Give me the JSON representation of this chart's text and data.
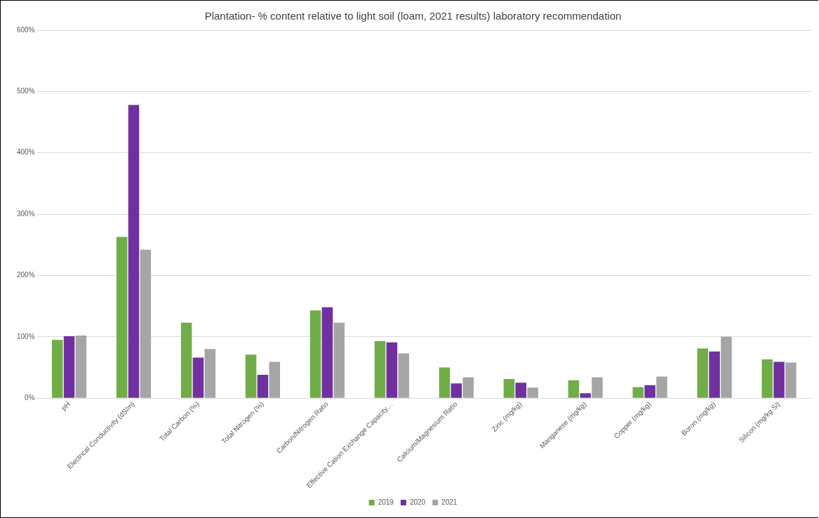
{
  "chart_data": {
    "type": "bar",
    "title": "Plantation- % content relative to light soil (loam, 2021 results) laboratory recommendation",
    "categories": [
      "pH",
      "Electrical Conductivity (dS/m)",
      "Total Carbon (%)",
      "Total Nitrogen (%)",
      "Carbon/Nitrogen Ratio",
      "Effective Cation Exchange Capacity…",
      "Calcium/Magnesium Ratio",
      "Zinc (mg/kg)",
      "Manganese (mg/kg)",
      "Copper (mg/kg)",
      "Boron (mg/kg)",
      "Silicon (mg/kg Si)"
    ],
    "series": [
      {
        "name": "2019",
        "color": "#70ad47",
        "values": [
          95,
          263,
          123,
          71,
          143,
          93,
          50,
          31,
          29,
          18,
          81,
          63
        ]
      },
      {
        "name": "2020",
        "color": "#7030a0",
        "values": [
          101,
          478,
          66,
          38,
          148,
          91,
          24,
          25,
          8,
          21,
          76,
          59
        ]
      },
      {
        "name": "2021",
        "color": "#a5a5a5",
        "values": [
          102,
          242,
          80,
          59,
          123,
          73,
          34,
          17,
          34,
          35,
          100,
          58
        ]
      }
    ],
    "ylim": [
      0,
      600
    ],
    "yticks": [
      {
        "value": 0,
        "label": "0%"
      },
      {
        "value": 100,
        "label": "100%"
      },
      {
        "value": 200,
        "label": "200%"
      },
      {
        "value": 300,
        "label": "300%"
      },
      {
        "value": 400,
        "label": "400%"
      },
      {
        "value": 500,
        "label": "500%"
      },
      {
        "value": 600,
        "label": "600%"
      }
    ],
    "grid": "y",
    "legend": "bottom"
  }
}
